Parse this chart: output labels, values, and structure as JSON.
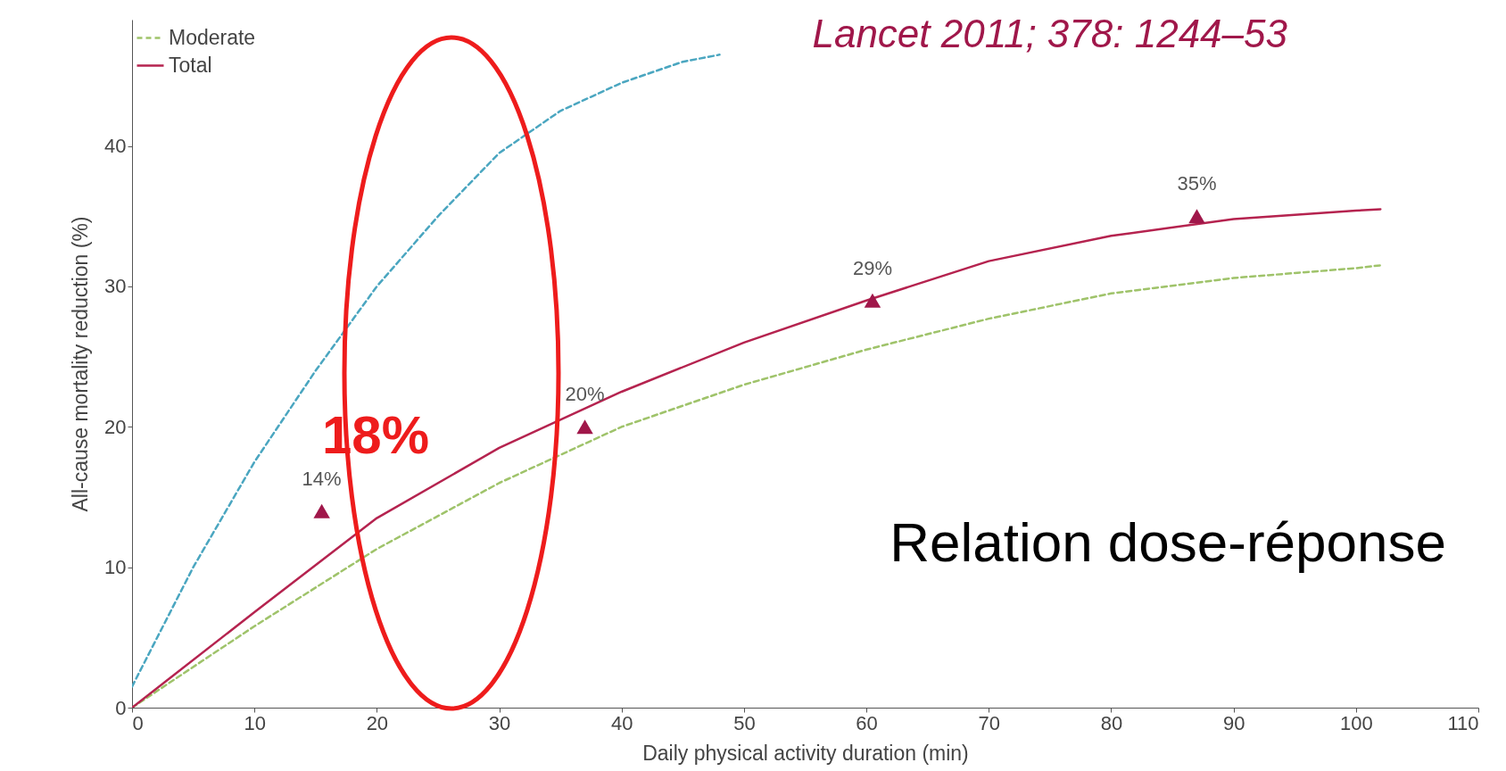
{
  "chart_data": {
    "type": "line",
    "xlabel": "Daily physical activity duration (min)",
    "ylabel": "All-cause mortality reduction (%)",
    "xlim": [
      0,
      110
    ],
    "xticks": [
      0,
      10,
      20,
      30,
      40,
      50,
      60,
      70,
      80,
      90,
      100,
      110
    ],
    "ylim": [
      0,
      49
    ],
    "yticks": [
      0,
      10,
      20,
      30,
      40
    ],
    "grid": false,
    "legend": "top left",
    "marker": "none",
    "series": [
      {
        "color": "#4aa6c0",
        "line_style": "dashed",
        "x": [
          0,
          5,
          10,
          15,
          20,
          25,
          30,
          35,
          40,
          45,
          48
        ],
        "values": [
          1.5,
          10,
          17.5,
          24,
          30,
          35,
          39.5,
          42.5,
          44.5,
          46,
          46.5
        ]
      },
      {
        "name": "Moderate",
        "color": "#9fc36a",
        "line_style": "dashed",
        "x": [
          0,
          10,
          20,
          30,
          40,
          50,
          60,
          70,
          80,
          90,
          100,
          102
        ],
        "values": [
          0,
          5.8,
          11.3,
          16,
          20,
          23,
          25.5,
          27.7,
          29.5,
          30.6,
          31.3,
          31.5
        ]
      },
      {
        "name": "Total",
        "color": "#b5234f",
        "line_style": "solid",
        "x": [
          0,
          10,
          20,
          30,
          40,
          50,
          60,
          70,
          80,
          90,
          100,
          102
        ],
        "values": [
          0,
          6.8,
          13.5,
          18.5,
          22.5,
          26,
          29,
          31.8,
          33.6,
          34.8,
          35.4,
          35.5
        ]
      },
      {
        "type": "scatter",
        "marker": "triangle",
        "color": "#a0174a",
        "x": [
          15.5,
          37,
          60.5,
          87
        ],
        "values": [
          14,
          20,
          29,
          35
        ],
        "value_labels": [
          "14%",
          "20%",
          "29%",
          "35%"
        ]
      }
    ],
    "annotations": [
      "Lancet 2011; 378: 1244–53",
      "18%",
      "Relation dose-réponse"
    ]
  }
}
